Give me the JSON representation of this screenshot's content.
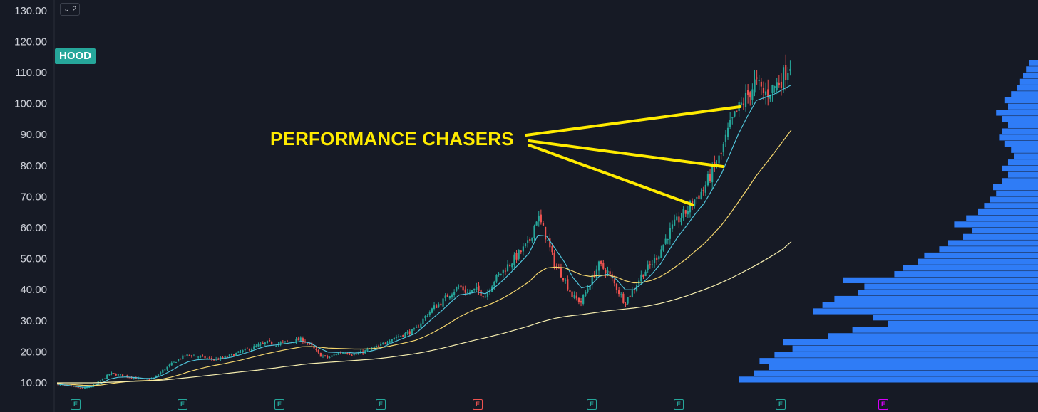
{
  "symbol": "HOOD",
  "collapse_button": {
    "label": "2"
  },
  "annotation": "PERFORMANCE CHASERS",
  "earnings_markers": [
    {
      "label": "E",
      "status": "positive"
    },
    {
      "label": "E",
      "status": "positive"
    },
    {
      "label": "E",
      "status": "positive"
    },
    {
      "label": "E",
      "status": "positive"
    },
    {
      "label": "E",
      "status": "negative"
    },
    {
      "label": "E",
      "status": "positive"
    },
    {
      "label": "E",
      "status": "positive"
    },
    {
      "label": "E",
      "status": "positive"
    },
    {
      "label": "E",
      "status": "future"
    }
  ],
  "colors": {
    "background": "#161a25",
    "up": "#26a69a",
    "down": "#ef5350",
    "ema_fast": "#4fc3d9",
    "sma_mid": "#f5d76e",
    "sma_long": "#f7efb0",
    "volume_profile": "#2f7cf6",
    "annotation": "#ffeb00"
  },
  "chart_data": {
    "type": "line",
    "title": "",
    "xlabel": "",
    "ylabel": "",
    "ylim": [
      5,
      130
    ],
    "y_ticks": [
      "10.00",
      "20.00",
      "30.00",
      "40.00",
      "50.00",
      "60.00",
      "70.00",
      "80.00",
      "90.00",
      "100.00",
      "110.00",
      "120.00",
      "130.00"
    ],
    "grid": false,
    "series": [
      {
        "role": "price (candlesticks)",
        "key": "price",
        "values": [
          9.5,
          9,
          8.5,
          8.2,
          9,
          11,
          13,
          12.5,
          12,
          11.5,
          11,
          11.5,
          14,
          16,
          18,
          19,
          18.5,
          18,
          17.5,
          18,
          19,
          20,
          21,
          22,
          23,
          22.5,
          23,
          23.5,
          24,
          22,
          19,
          18,
          19.5,
          20,
          19,
          20,
          21,
          22,
          24,
          25,
          26,
          27,
          31,
          34,
          36,
          39,
          41,
          39,
          40,
          38,
          43,
          46,
          49,
          52,
          55,
          64,
          57,
          48,
          44,
          38,
          36,
          42,
          48,
          46,
          41,
          36,
          40,
          45,
          48,
          52,
          58,
          62,
          65,
          69,
          72,
          78,
          83,
          92,
          98,
          102,
          107,
          103,
          105,
          108,
          113
        ]
      },
      {
        "role": "fast moving average",
        "key": "ema_fast",
        "values": [
          9.6,
          9.3,
          8.9,
          8.6,
          8.8,
          9.8,
          11.2,
          11.8,
          11.9,
          11.7,
          11.4,
          11.4,
          12.4,
          13.8,
          15.5,
          16.8,
          17.4,
          17.6,
          17.6,
          17.8,
          18.3,
          19.1,
          20,
          21,
          21.9,
          22.2,
          22.6,
          23,
          23.4,
          22.8,
          21.2,
          19.9,
          19.8,
          19.9,
          19.6,
          19.8,
          20.3,
          21.1,
          22.5,
          23.7,
          24.8,
          25.9,
          28.3,
          30.9,
          33.2,
          35.9,
          38.3,
          38.7,
          39.3,
          38.7,
          40.6,
          43,
          45.8,
          48.8,
          51.8,
          57.6,
          57.3,
          53.2,
          49.1,
          44,
          40.6,
          41.2,
          44.3,
          45.1,
          43.3,
          40,
          40,
          42.2,
          44.9,
          48.2,
          52.7,
          57,
          60.6,
          64.4,
          67.8,
          72.5,
          77.3,
          84,
          90.5,
          96,
          101,
          102,
          103,
          104.5,
          106
        ]
      },
      {
        "role": "medium moving average",
        "key": "sma_mid",
        "values": [
          9.8,
          9.6,
          9.4,
          9.2,
          9.1,
          9.3,
          9.7,
          10.1,
          10.4,
          10.6,
          10.7,
          10.8,
          11.2,
          11.8,
          12.6,
          13.5,
          14.3,
          15,
          15.6,
          16.1,
          16.7,
          17.3,
          18,
          18.7,
          19.4,
          20,
          20.6,
          21.1,
          21.6,
          21.7,
          21.5,
          21.2,
          21.1,
          21,
          20.9,
          20.9,
          21,
          21.3,
          21.8,
          22.4,
          23,
          23.7,
          24.8,
          26.2,
          27.7,
          29.4,
          31.2,
          32.6,
          33.9,
          34.7,
          35.9,
          37.3,
          38.9,
          40.7,
          42.6,
          45.4,
          47,
          47.3,
          47.1,
          46,
          44.8,
          44.3,
          44.6,
          44.7,
          44.1,
          42.9,
          42.2,
          42.4,
          43,
          44.2,
          45.9,
          47.9,
          50,
          52.4,
          54.8,
          57.7,
          60.8,
          64.5,
          68.5,
          72.6,
          76.8,
          80.4,
          84,
          87.7,
          91.5
        ]
      },
      {
        "role": "long moving average",
        "key": "sma_long",
        "values": [
          10,
          10,
          10,
          10,
          10,
          10.1,
          10.2,
          10.3,
          10.4,
          10.5,
          10.6,
          10.7,
          10.9,
          11.1,
          11.4,
          11.7,
          12,
          12.3,
          12.6,
          12.9,
          13.2,
          13.5,
          13.8,
          14.1,
          14.5,
          14.8,
          15.2,
          15.5,
          15.9,
          16.2,
          16.4,
          16.6,
          16.8,
          17,
          17.2,
          17.4,
          17.6,
          17.9,
          18.2,
          18.6,
          19,
          19.4,
          19.9,
          20.5,
          21.1,
          21.8,
          22.5,
          23.2,
          23.9,
          24.5,
          25.2,
          25.9,
          26.7,
          27.5,
          28.3,
          29.3,
          30.1,
          30.8,
          31.3,
          31.7,
          32,
          32.4,
          32.8,
          33.2,
          33.5,
          33.8,
          34.1,
          34.5,
          35,
          35.6,
          36.3,
          37.1,
          38,
          39,
          40,
          41.1,
          42.3,
          43.6,
          45,
          46.5,
          48,
          49.6,
          51.3,
          53,
          55.5
        ]
      }
    ],
    "volume_profile": {
      "price_levels": [
        10,
        12,
        14,
        16,
        18,
        20,
        22,
        24,
        26,
        28,
        30,
        32,
        34,
        36,
        38,
        40,
        42,
        44,
        46,
        48,
        50,
        52,
        54,
        56,
        58,
        60,
        62,
        64,
        66,
        68,
        70,
        72,
        74,
        76,
        78,
        80,
        82,
        84,
        86,
        88,
        90,
        92,
        94,
        96,
        98,
        100,
        102,
        104,
        106,
        108,
        110,
        112
      ],
      "relative_volume": [
        1.0,
        0.95,
        0.9,
        0.93,
        0.88,
        0.82,
        0.85,
        0.7,
        0.62,
        0.5,
        0.55,
        0.75,
        0.72,
        0.68,
        0.6,
        0.58,
        0.65,
        0.48,
        0.45,
        0.4,
        0.38,
        0.33,
        0.3,
        0.25,
        0.22,
        0.28,
        0.24,
        0.2,
        0.18,
        0.16,
        0.14,
        0.15,
        0.12,
        0.1,
        0.12,
        0.1,
        0.08,
        0.09,
        0.11,
        0.13,
        0.12,
        0.1,
        0.12,
        0.14,
        0.1,
        0.11,
        0.09,
        0.07,
        0.06,
        0.05,
        0.04,
        0.03
      ]
    }
  }
}
